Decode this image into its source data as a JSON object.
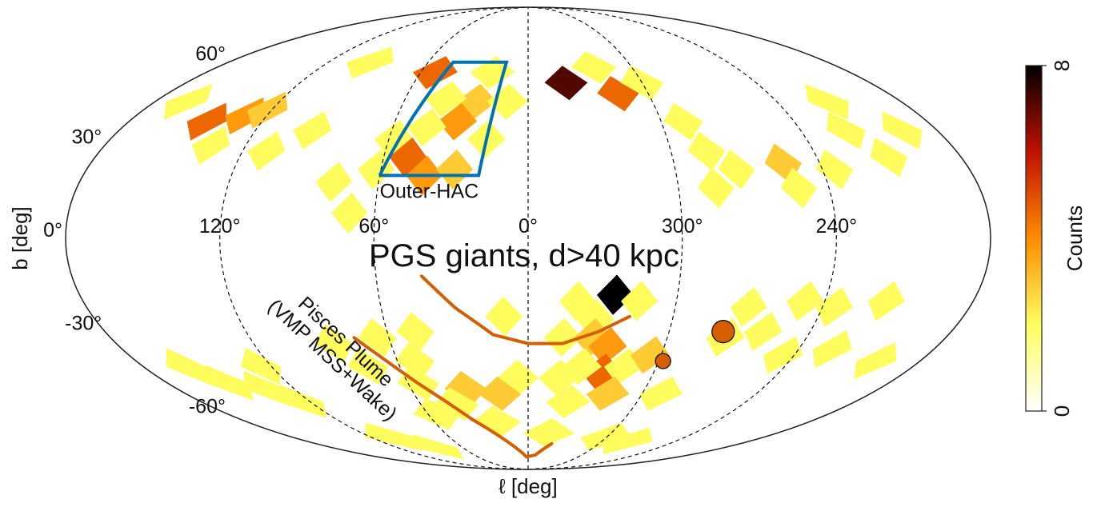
{
  "chart_data": {
    "type": "heatmap",
    "projection": "mollweide",
    "title": "PGS giants, d>40 kpc",
    "xlabel": "ℓ [deg]",
    "ylabel": "b [deg]",
    "lon_ticks": [
      {
        "lon": 120,
        "label": "120°"
      },
      {
        "lon": 60,
        "label": "60°"
      },
      {
        "lon": 0,
        "label": "0°"
      },
      {
        "lon": 300,
        "label": "300°"
      },
      {
        "lon": 240,
        "label": "240°"
      }
    ],
    "lat_ticks": [
      {
        "lat": 60,
        "label": "60°"
      },
      {
        "lat": 30,
        "label": "30°"
      },
      {
        "lat": 0,
        "label": "0°"
      },
      {
        "lat": -30,
        "label": "-30°"
      },
      {
        "lat": -60,
        "label": "-60°"
      }
    ],
    "grid": true,
    "colorbar": {
      "label": "Counts",
      "min": 0,
      "max": 8,
      "tick_labels": [
        "0",
        "8"
      ],
      "colormap": "afmhot_r"
    },
    "cells": [
      {
        "lon": 52,
        "lat": 56,
        "count": 4
      },
      {
        "lon": 20,
        "lat": 56,
        "count": 1
      },
      {
        "lon": -38,
        "lat": 58,
        "count": 1
      },
      {
        "lon": -20,
        "lat": 52,
        "count": 7
      },
      {
        "lon": -45,
        "lat": 48,
        "count": 4
      },
      {
        "lon": -60,
        "lat": 52,
        "count": 1
      },
      {
        "lon": 25,
        "lat": 45,
        "count": 2
      },
      {
        "lon": 40,
        "lat": 46,
        "count": 1
      },
      {
        "lon": 10,
        "lat": 45,
        "count": 1
      },
      {
        "lon": 32,
        "lat": 38,
        "count": 3
      },
      {
        "lon": 45,
        "lat": 36,
        "count": 1
      },
      {
        "lon": 18,
        "lat": 32,
        "count": 1
      },
      {
        "lon": 58,
        "lat": 32,
        "count": 1
      },
      {
        "lon": 50,
        "lat": 26,
        "count": 4
      },
      {
        "lon": 42,
        "lat": 20,
        "count": 3
      },
      {
        "lon": 62,
        "lat": 22,
        "count": 1
      },
      {
        "lon": 30,
        "lat": 22,
        "count": 2
      },
      {
        "lon": 95,
        "lat": 35,
        "count": 1
      },
      {
        "lon": 78,
        "lat": 18,
        "count": 1
      },
      {
        "lon": 70,
        "lat": 8,
        "count": 1
      },
      {
        "lon": 145,
        "lat": 38,
        "count": 4
      },
      {
        "lon": 130,
        "lat": 40,
        "count": 3
      },
      {
        "lon": 122,
        "lat": 42,
        "count": 2
      },
      {
        "lon": 135,
        "lat": 30,
        "count": 1
      },
      {
        "lon": 110,
        "lat": 28,
        "count": 1
      },
      {
        "lon": 95,
        "lat": 60,
        "count": 1
      },
      {
        "lon": -70,
        "lat": 38,
        "count": 1
      },
      {
        "lon": -75,
        "lat": 28,
        "count": 1
      },
      {
        "lon": -75,
        "lat": 16,
        "count": 1
      },
      {
        "lon": -85,
        "lat": 22,
        "count": 1
      },
      {
        "lon": -105,
        "lat": 24,
        "count": 2
      },
      {
        "lon": -108,
        "lat": 16,
        "count": 1
      },
      {
        "lon": -125,
        "lat": 22,
        "count": 1
      },
      {
        "lon": -140,
        "lat": 35,
        "count": 1
      },
      {
        "lon": -150,
        "lat": 26,
        "count": 1
      },
      {
        "lon": -145,
        "lat": 45,
        "count": 1
      },
      {
        "lon": -165,
        "lat": 35,
        "count": 1
      },
      {
        "lon": 165,
        "lat": 45,
        "count": 1
      },
      {
        "lon": 10,
        "lat": -25,
        "count": 1
      },
      {
        "lon": -20,
        "lat": -20,
        "count": 1
      },
      {
        "lon": -28,
        "lat": -26,
        "count": 1
      },
      {
        "lon": -35,
        "lat": -18,
        "count": 8
      },
      {
        "lon": -45,
        "lat": -20,
        "count": 1
      },
      {
        "lon": -15,
        "lat": -32,
        "count": 1
      },
      {
        "lon": -28,
        "lat": -32,
        "count": 2
      },
      {
        "lon": -35,
        "lat": -35,
        "count": 3
      },
      {
        "lon": -35,
        "lat": -44,
        "count": 4
      },
      {
        "lon": -25,
        "lat": -42,
        "count": 1
      },
      {
        "lon": -45,
        "lat": -42,
        "count": 1
      },
      {
        "lon": -15,
        "lat": -46,
        "count": 1
      },
      {
        "lon": -42,
        "lat": -52,
        "count": 2
      },
      {
        "lon": -22,
        "lat": -55,
        "count": 1
      },
      {
        "lon": -55,
        "lat": -38,
        "count": 2
      },
      {
        "lon": 5,
        "lat": -46,
        "count": 1
      },
      {
        "lon": 15,
        "lat": -52,
        "count": 2
      },
      {
        "lon": 32,
        "lat": -50,
        "count": 2
      },
      {
        "lon": 40,
        "lat": -56,
        "count": 1
      },
      {
        "lon": 20,
        "lat": -63,
        "count": 1
      },
      {
        "lon": 55,
        "lat": -60,
        "count": 1
      },
      {
        "lon": 55,
        "lat": -48,
        "count": 1
      },
      {
        "lon": 52,
        "lat": -40,
        "count": 1
      },
      {
        "lon": 48,
        "lat": -30,
        "count": 1
      },
      {
        "lon": 65,
        "lat": -32,
        "count": 1
      },
      {
        "lon": 75,
        "lat": -42,
        "count": 1
      },
      {
        "lon": 85,
        "lat": -34,
        "count": 1
      },
      {
        "lon": 125,
        "lat": -42,
        "count": 1
      },
      {
        "lon": 125,
        "lat": -55,
        "count": 1
      },
      {
        "lon": 135,
        "lat": -50,
        "count": 1
      },
      {
        "lon": 105,
        "lat": -70,
        "count": 1
      },
      {
        "lon": 85,
        "lat": -75,
        "count": 1
      },
      {
        "lon": -15,
        "lat": -68,
        "count": 1
      },
      {
        "lon": -60,
        "lat": -70,
        "count": 1
      },
      {
        "lon": -82,
        "lat": -72,
        "count": 1
      },
      {
        "lon": -70,
        "lat": -52,
        "count": 1
      },
      {
        "lon": -85,
        "lat": -32,
        "count": 1
      },
      {
        "lon": -100,
        "lat": -30,
        "count": 1
      },
      {
        "lon": -90,
        "lat": -22,
        "count": 1
      },
      {
        "lon": -112,
        "lat": -20,
        "count": 1
      },
      {
        "lon": -125,
        "lat": -22,
        "count": 1
      },
      {
        "lon": -145,
        "lat": -20,
        "count": 1
      },
      {
        "lon": -115,
        "lat": -38,
        "count": 1
      },
      {
        "lon": -160,
        "lat": -40,
        "count": 1
      },
      {
        "lon": -135,
        "lat": -36,
        "count": 1
      },
      {
        "lon": 160,
        "lat": -42,
        "count": 1
      },
      {
        "lon": 150,
        "lat": -48,
        "count": 1
      }
    ],
    "regions": [
      {
        "name": "Outer-HAC",
        "label": "Outer-HAC",
        "color": "#0072b2",
        "polygon": [
          [
            60,
            20
          ],
          [
            20,
            20
          ],
          [
            13,
            60
          ],
          [
            45,
            60
          ],
          [
            60,
            20
          ]
        ]
      }
    ],
    "streams": [
      {
        "name": "Pisces Plume (VMP MSS+Wake)",
        "label": "Pisces Plume\n(VMP MSS+Wake)",
        "color": "#d55e00",
        "tracks": [
          [
            [
              42,
              -12
            ],
            [
              30,
              -22
            ],
            [
              15,
              -31
            ],
            [
              0,
              -34
            ],
            [
              -15,
              -34
            ],
            [
              -30,
              -30
            ],
            [
              -42,
              -25
            ]
          ],
          [
            [
              75,
              -32
            ],
            [
              55,
              -48
            ],
            [
              35,
              -62
            ],
            [
              15,
              -73
            ],
            [
              2,
              -80
            ],
            [
              -8,
              -79
            ],
            [
              -20,
              -73
            ]
          ]
        ]
      }
    ],
    "markers": [
      {
        "name": "large-circle-marker",
        "lon": -83,
        "lat": -30,
        "size": "large",
        "color": "#d55e00"
      },
      {
        "name": "small-circle-marker",
        "lon": -62,
        "lat": -40,
        "size": "small",
        "color": "#d55e00"
      }
    ]
  }
}
